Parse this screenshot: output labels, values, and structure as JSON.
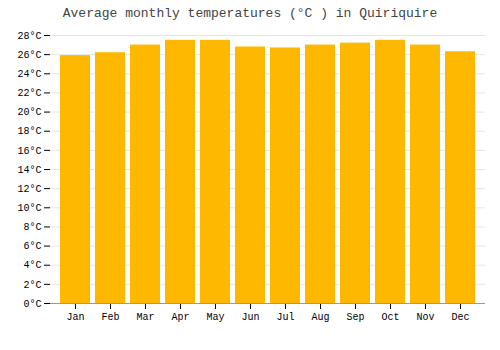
{
  "chart_data": {
    "type": "bar",
    "title": "Average monthly temperatures (°C ) in Quiriquire",
    "categories": [
      "Jan",
      "Feb",
      "Mar",
      "Apr",
      "May",
      "Jun",
      "Jul",
      "Aug",
      "Sep",
      "Oct",
      "Nov",
      "Dec"
    ],
    "values": [
      25.9,
      26.2,
      27.0,
      27.5,
      27.5,
      26.8,
      26.7,
      27.0,
      27.2,
      27.5,
      27.0,
      26.3
    ],
    "color": "#FFB800",
    "ylim": [
      0,
      28
    ],
    "yticks": [
      {
        "value": 0,
        "label": "0°C"
      },
      {
        "value": 2,
        "label": "2°C"
      },
      {
        "value": 4,
        "label": "4°C"
      },
      {
        "value": 6,
        "label": "6°C"
      },
      {
        "value": 8,
        "label": "8°C"
      },
      {
        "value": 10,
        "label": "10°C"
      },
      {
        "value": 12,
        "label": "12°C"
      },
      {
        "value": 14,
        "label": "14°C"
      },
      {
        "value": 16,
        "label": "16°C"
      },
      {
        "value": 18,
        "label": "18°C"
      },
      {
        "value": 20,
        "label": "20°C"
      },
      {
        "value": 22,
        "label": "22°C"
      },
      {
        "value": 24,
        "label": "24°C"
      },
      {
        "value": 26,
        "label": "26°C"
      },
      {
        "value": 28,
        "label": "28°C"
      }
    ],
    "grid": true
  }
}
